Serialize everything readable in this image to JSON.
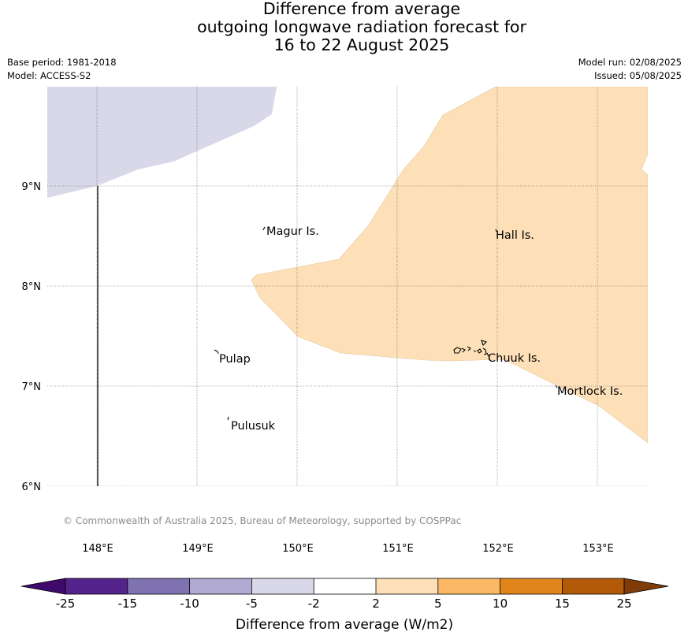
{
  "title": {
    "line1": "Difference from average",
    "line2": "outgoing longwave radiation forecast for",
    "line3": "16 to 22 August 2025"
  },
  "meta": {
    "base_period": "Base period: 1981-2018",
    "model": "Model: ACCESS-S2",
    "model_run": "Model run: 02/08/2025",
    "issued": "Issued: 05/08/2025"
  },
  "map": {
    "lat_labels": [
      "9°N",
      "8°N",
      "7°N",
      "6°N"
    ],
    "lon_labels": [
      "148°E",
      "149°E",
      "150°E",
      "151°E",
      "152°E",
      "153°E"
    ],
    "places": {
      "magur": "Magur Is.",
      "hall": "Hall Is.",
      "pulap": "Pulap",
      "chuuk": "Chuuk Is.",
      "mortlock": "Mortlock Is.",
      "pulusuk": "Pulusuk"
    },
    "copyright": "© Commonwealth of Australia 2025, Bureau of Meteorology, supported by COSPPac",
    "regions": {
      "north_west": {
        "category": "-5 to -2",
        "color": "#d8d8e9"
      },
      "east": {
        "category": "2 to 5",
        "color": "#fde0b8"
      }
    }
  },
  "colorbar": {
    "label": "Difference from average (W/m2)",
    "ticks": [
      "-25",
      "-15",
      "-10",
      "-5",
      "-2",
      "2",
      "5",
      "10",
      "15",
      "25"
    ],
    "colors": [
      "#3f0a6b",
      "#55238c",
      "#7f72b0",
      "#b0a9d2",
      "#d8d8e9",
      "#ffffff",
      "#fde0b8",
      "#fbb965",
      "#e08519",
      "#b35a09",
      "#7f3b08"
    ]
  }
}
